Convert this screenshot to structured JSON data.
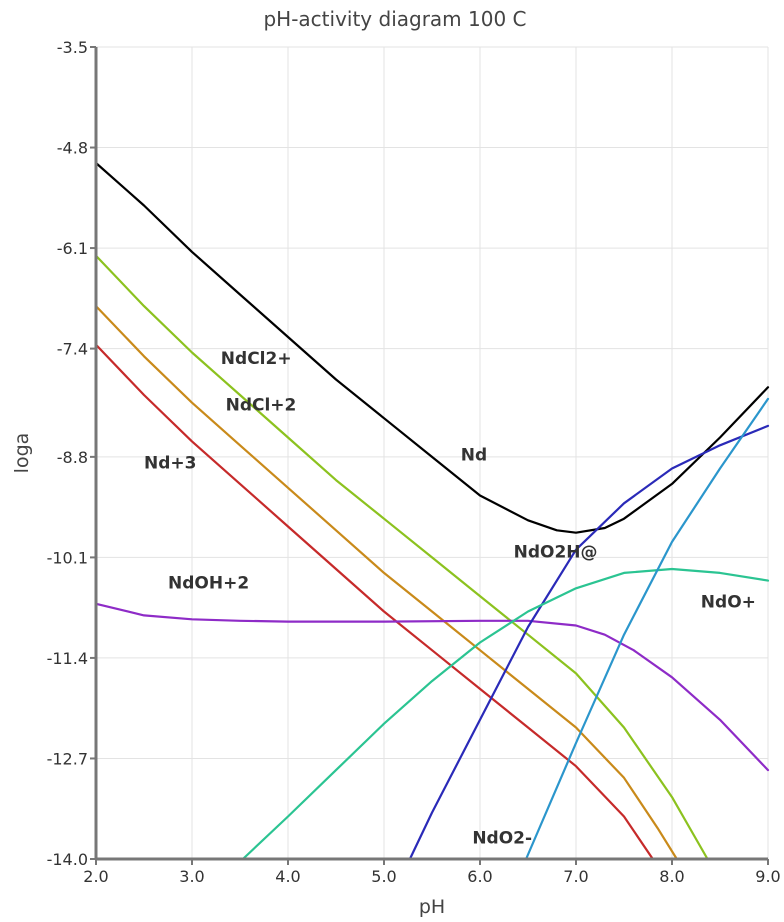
{
  "chart_data": {
    "type": "line",
    "title": "pH-activity diagram 100 C",
    "xlabel": "pH",
    "ylabel": "loga",
    "xlim": [
      2.0,
      9.0
    ],
    "ylim": [
      -14.0,
      -3.5
    ],
    "xticks": [
      "2.0",
      "3.0",
      "4.0",
      "5.0",
      "6.0",
      "7.0",
      "8.0",
      "9.0"
    ],
    "yticks": [
      "-14.0",
      "-12.7",
      "-11.4",
      "-10.1",
      "-8.8",
      "-7.4",
      "-6.1",
      "-4.8",
      "-3.5"
    ],
    "grid": true,
    "series": [
      {
        "name": "Nd",
        "color": "#000000",
        "label_at": [
          5.8,
          -8.85
        ],
        "points": [
          [
            2.0,
            -5.0
          ],
          [
            2.5,
            -5.55
          ],
          [
            3.0,
            -6.15
          ],
          [
            3.5,
            -6.7
          ],
          [
            4.0,
            -7.25
          ],
          [
            4.5,
            -7.8
          ],
          [
            5.0,
            -8.3
          ],
          [
            5.5,
            -8.8
          ],
          [
            6.0,
            -9.3
          ],
          [
            6.5,
            -9.62
          ],
          [
            6.8,
            -9.75
          ],
          [
            7.0,
            -9.78
          ],
          [
            7.3,
            -9.72
          ],
          [
            7.5,
            -9.6
          ],
          [
            8.0,
            -9.15
          ],
          [
            8.5,
            -8.55
          ],
          [
            9.0,
            -7.9
          ]
        ]
      },
      {
        "name": "NdCl2+",
        "color": "#8cc21f",
        "label_at": [
          3.3,
          -7.6
        ],
        "points": [
          [
            2.0,
            -6.2
          ],
          [
            2.5,
            -6.85
          ],
          [
            3.0,
            -7.45
          ],
          [
            3.5,
            -8.0
          ],
          [
            4.0,
            -8.55
          ],
          [
            4.5,
            -9.1
          ],
          [
            5.0,
            -9.6
          ],
          [
            5.5,
            -10.1
          ],
          [
            6.0,
            -10.6
          ],
          [
            6.5,
            -11.1
          ],
          [
            7.0,
            -11.6
          ],
          [
            7.5,
            -12.3
          ],
          [
            8.0,
            -13.2
          ],
          [
            8.37,
            -14.0
          ]
        ]
      },
      {
        "name": "NdCl+2",
        "color": "#c98a1a",
        "label_at": [
          3.35,
          -8.2
        ],
        "points": [
          [
            2.0,
            -6.85
          ],
          [
            2.5,
            -7.5
          ],
          [
            3.0,
            -8.1
          ],
          [
            3.5,
            -8.65
          ],
          [
            4.0,
            -9.2
          ],
          [
            4.5,
            -9.75
          ],
          [
            5.0,
            -10.3
          ],
          [
            5.5,
            -10.8
          ],
          [
            6.0,
            -11.3
          ],
          [
            6.5,
            -11.8
          ],
          [
            7.0,
            -12.3
          ],
          [
            7.5,
            -12.95
          ],
          [
            7.85,
            -13.6
          ],
          [
            8.05,
            -14.0
          ]
        ]
      },
      {
        "name": "Nd+3",
        "color": "#c62a2a",
        "label_at": [
          2.5,
          -8.95
        ],
        "points": [
          [
            2.0,
            -7.35
          ],
          [
            2.5,
            -8.0
          ],
          [
            3.0,
            -8.6
          ],
          [
            3.5,
            -9.15
          ],
          [
            4.0,
            -9.7
          ],
          [
            4.5,
            -10.25
          ],
          [
            5.0,
            -10.8
          ],
          [
            5.5,
            -11.3
          ],
          [
            6.0,
            -11.8
          ],
          [
            6.5,
            -12.3
          ],
          [
            7.0,
            -12.8
          ],
          [
            7.5,
            -13.45
          ],
          [
            7.8,
            -14.0
          ]
        ]
      },
      {
        "name": "NdOH+2",
        "color": "#8e2bc7",
        "label_at": [
          2.75,
          -10.5
        ],
        "points": [
          [
            2.0,
            -10.7
          ],
          [
            2.5,
            -10.85
          ],
          [
            3.0,
            -10.9
          ],
          [
            3.5,
            -10.92
          ],
          [
            4.0,
            -10.93
          ],
          [
            5.0,
            -10.93
          ],
          [
            6.0,
            -10.92
          ],
          [
            6.5,
            -10.92
          ],
          [
            7.0,
            -10.98
          ],
          [
            7.3,
            -11.1
          ],
          [
            7.6,
            -11.3
          ],
          [
            8.0,
            -11.65
          ],
          [
            8.5,
            -12.2
          ],
          [
            9.0,
            -12.85
          ]
        ]
      },
      {
        "name": "NdO2H@",
        "color": "#2a2ab8",
        "label_at": [
          6.35,
          -10.1
        ],
        "points": [
          [
            5.27,
            -14.0
          ],
          [
            5.5,
            -13.4
          ],
          [
            6.0,
            -12.2
          ],
          [
            6.5,
            -11.0
          ],
          [
            7.0,
            -10.0
          ],
          [
            7.5,
            -9.4
          ],
          [
            8.0,
            -8.95
          ],
          [
            8.5,
            -8.65
          ],
          [
            9.0,
            -8.4
          ]
        ]
      },
      {
        "name": "NdO+",
        "color": "#2bc492",
        "label_at": [
          8.3,
          -10.75
        ],
        "points": [
          [
            3.53,
            -14.0
          ],
          [
            4.0,
            -13.45
          ],
          [
            4.5,
            -12.85
          ],
          [
            5.0,
            -12.25
          ],
          [
            5.5,
            -11.7
          ],
          [
            6.0,
            -11.2
          ],
          [
            6.5,
            -10.8
          ],
          [
            7.0,
            -10.5
          ],
          [
            7.5,
            -10.3
          ],
          [
            8.0,
            -10.25
          ],
          [
            8.5,
            -10.3
          ],
          [
            9.0,
            -10.4
          ]
        ]
      },
      {
        "name": "NdO2-",
        "color": "#2b96cc",
        "label_at": [
          5.92,
          -13.8
        ],
        "points": [
          [
            6.48,
            -14.0
          ],
          [
            7.0,
            -12.5
          ],
          [
            7.5,
            -11.1
          ],
          [
            8.0,
            -9.9
          ],
          [
            8.5,
            -8.95
          ],
          [
            9.0,
            -8.05
          ]
        ]
      }
    ]
  }
}
